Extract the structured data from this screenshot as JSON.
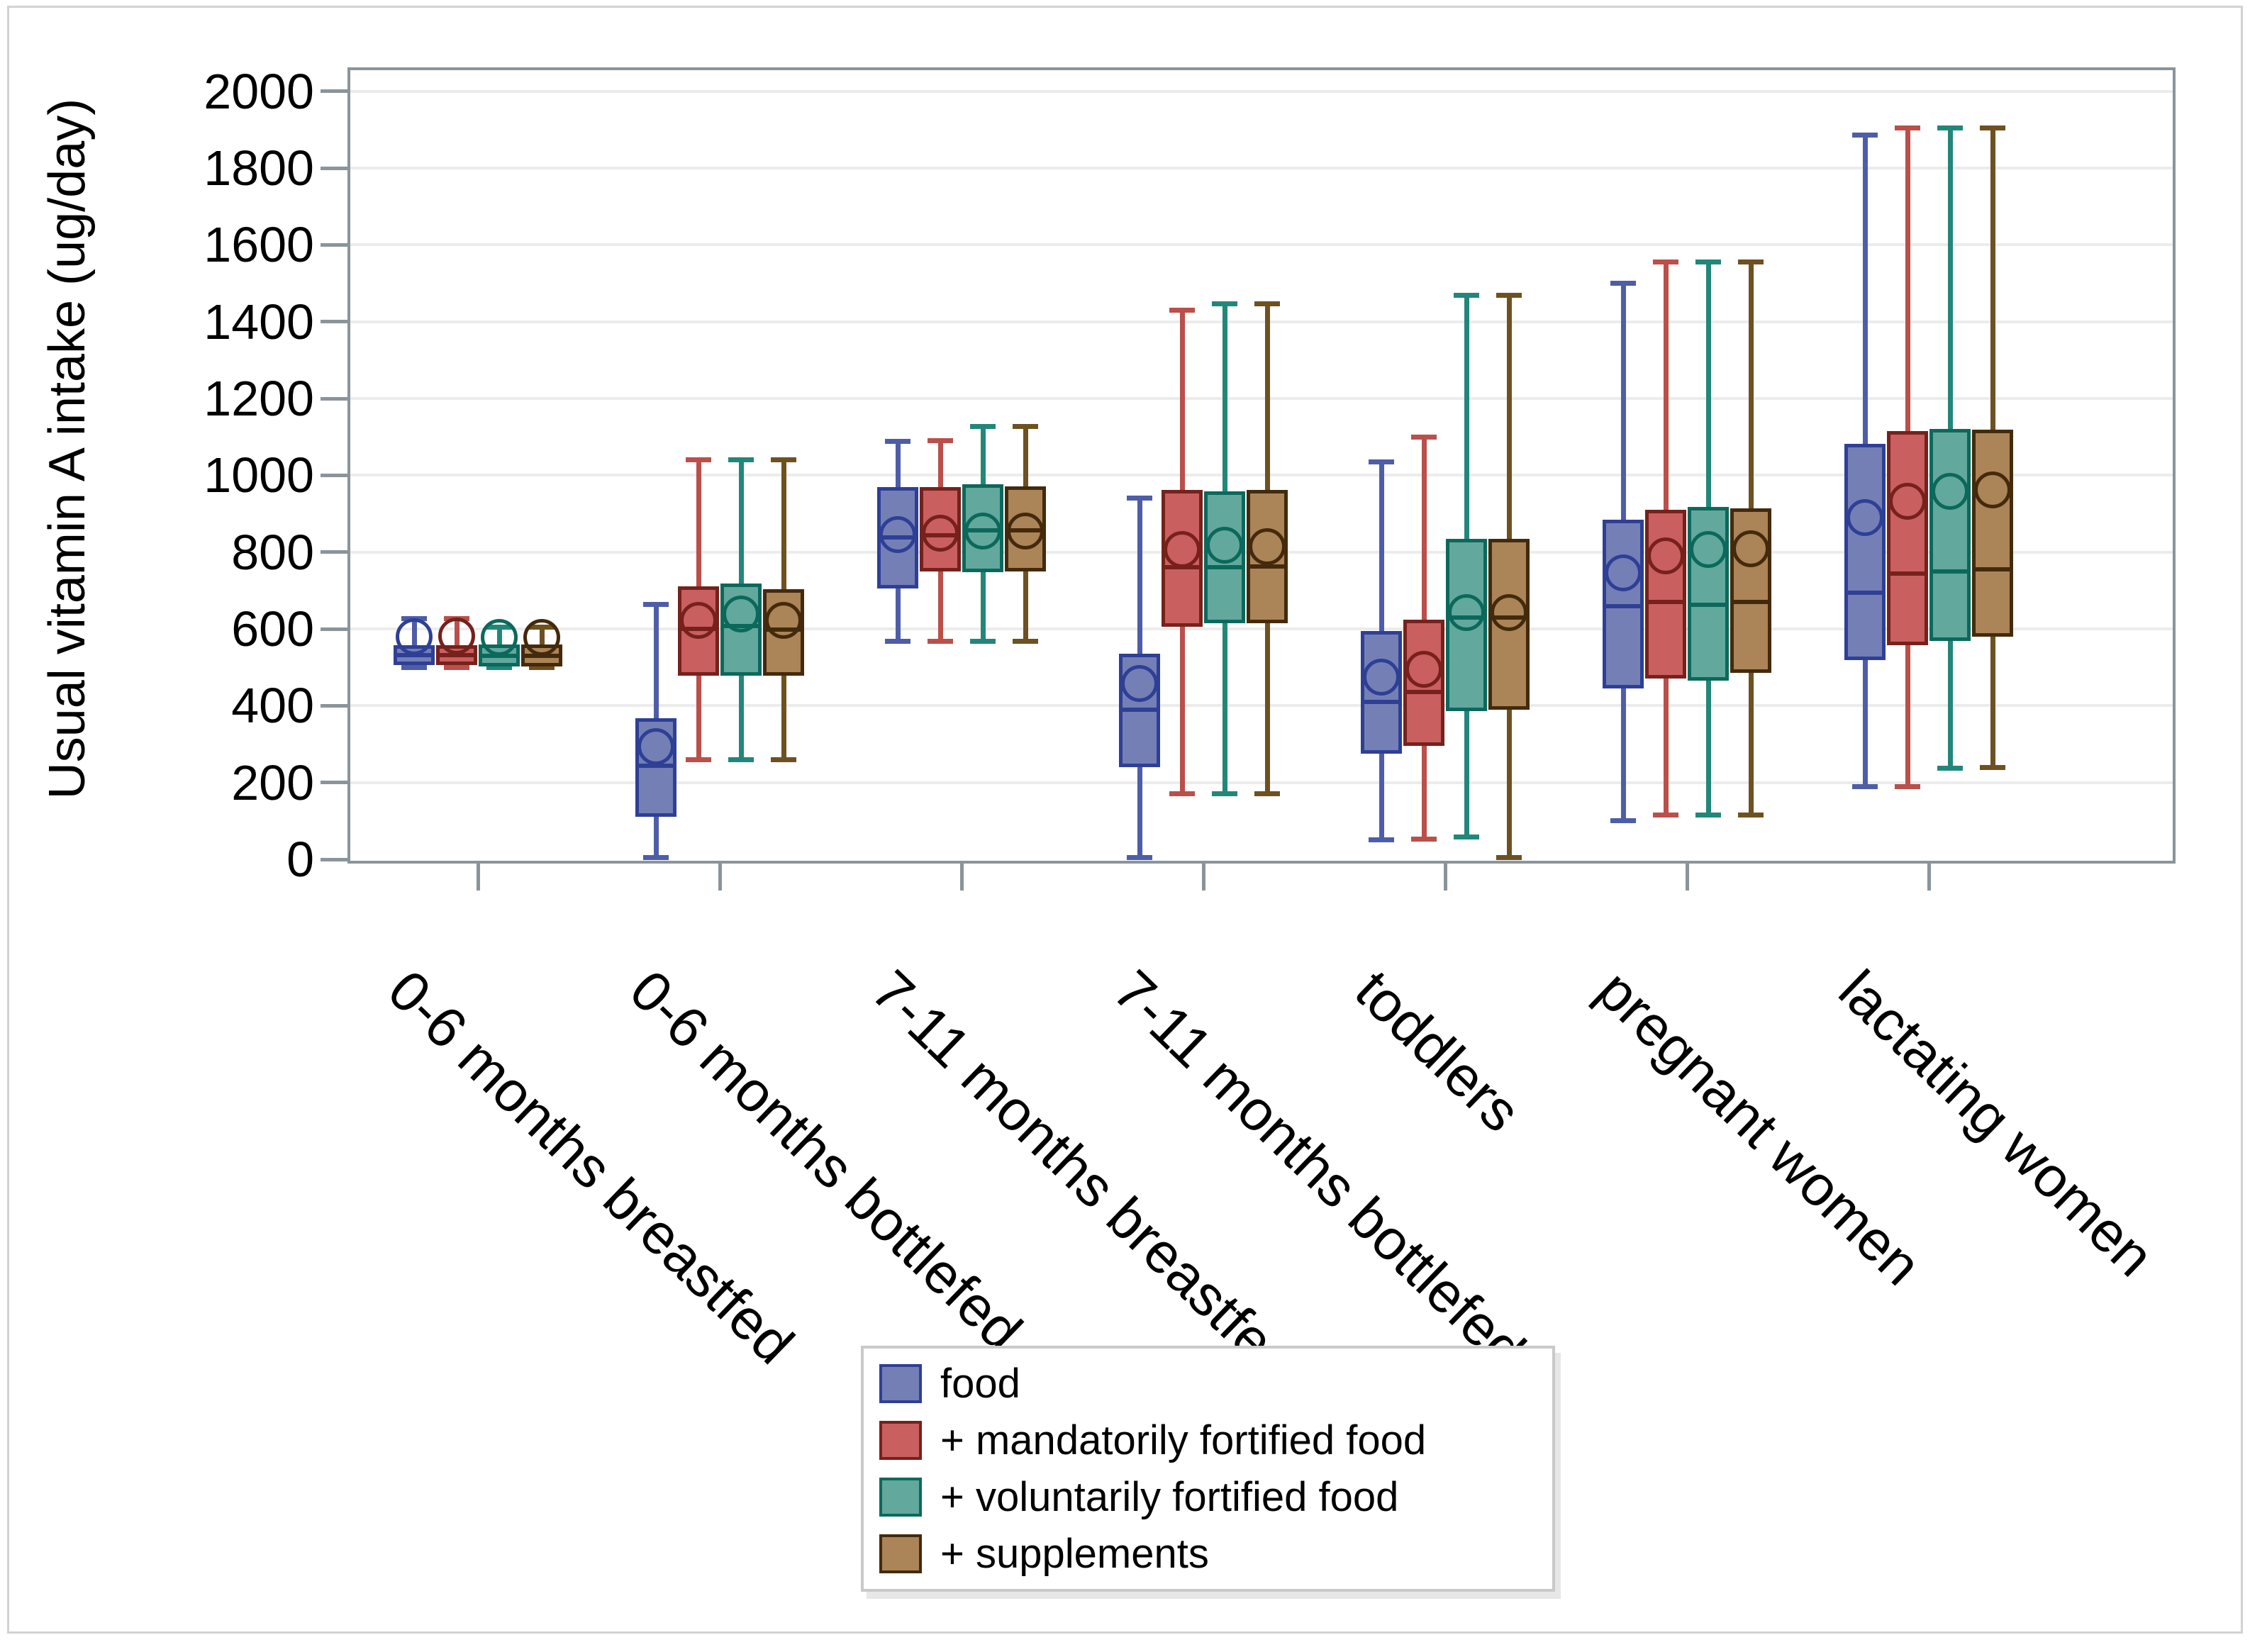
{
  "figure": {
    "background": "#ffffff",
    "border_color": "#d2d2d2"
  },
  "axis": {
    "frame_color": "#8a949b",
    "tick_color": "#8a949b",
    "gridline_color": "#ececec",
    "text_color": "#000000"
  },
  "chart_data": {
    "type": "boxplot",
    "title": "",
    "ylabel": "Usual vitamin A intake (ug/day)",
    "xlabel": "",
    "ylim": [
      0,
      2000
    ],
    "yticks": [
      0,
      200,
      400,
      600,
      800,
      1000,
      1200,
      1400,
      1600,
      1800,
      2000
    ],
    "grid": "horizontal",
    "legend_position": "bottom-center",
    "categories": [
      "0-6 months breastfed",
      "0-6 months bottlefed",
      "7-11 months breastfed",
      "7-11 months bottlefed",
      "toddlers",
      "pregnant women",
      "lactating women"
    ],
    "series": [
      {
        "name": "food",
        "fill": "#7480b5",
        "stroke": "#2e3f96",
        "whisker_color": "#4d5da8",
        "boxes": [
          {
            "min": 500,
            "q1": 505,
            "median": 532,
            "q3": 558,
            "mean": 580,
            "max": 627
          },
          {
            "min": 5,
            "q1": 111,
            "median": 244,
            "q3": 367,
            "mean": 293,
            "max": 663
          },
          {
            "min": 568,
            "q1": 705,
            "median": 838,
            "q3": 969,
            "mean": 846,
            "max": 1088
          },
          {
            "min": 5,
            "q1": 240,
            "median": 390,
            "q3": 535,
            "mean": 458,
            "max": 941
          },
          {
            "min": 50,
            "q1": 275,
            "median": 410,
            "q3": 595,
            "mean": 475,
            "max": 1035
          },
          {
            "min": 100,
            "q1": 445,
            "median": 660,
            "q3": 884,
            "mean": 746,
            "max": 1500
          },
          {
            "min": 190,
            "q1": 519,
            "median": 694,
            "q3": 1082,
            "mean": 890,
            "max": 1885
          }
        ]
      },
      {
        "name": "+ mandatorily fortified food",
        "fill": "#c95f5f",
        "stroke": "#76211c",
        "whisker_color": "#bb4f4a",
        "boxes": [
          {
            "min": 500,
            "q1": 505,
            "median": 532,
            "q3": 558,
            "mean": 582,
            "max": 627
          },
          {
            "min": 260,
            "q1": 478,
            "median": 600,
            "q3": 711,
            "mean": 622,
            "max": 1040
          },
          {
            "min": 568,
            "q1": 750,
            "median": 843,
            "q3": 970,
            "mean": 849,
            "max": 1090
          },
          {
            "min": 170,
            "q1": 606,
            "median": 760,
            "q3": 962,
            "mean": 807,
            "max": 1430
          },
          {
            "min": 52,
            "q1": 295,
            "median": 435,
            "q3": 624,
            "mean": 495,
            "max": 1100
          },
          {
            "min": 115,
            "q1": 470,
            "median": 670,
            "q3": 910,
            "mean": 790,
            "max": 1555
          },
          {
            "min": 190,
            "q1": 558,
            "median": 744,
            "q3": 1115,
            "mean": 933,
            "max": 1905
          }
        ]
      },
      {
        "name": "+ voluntarily fortified food",
        "fill": "#63a89d",
        "stroke": "#0b695c",
        "whisker_color": "#22877a",
        "boxes": [
          {
            "min": 500,
            "q1": 503,
            "median": 530,
            "q3": 560,
            "mean": 578,
            "max": 605
          },
          {
            "min": 260,
            "q1": 478,
            "median": 607,
            "q3": 718,
            "mean": 639,
            "max": 1040
          },
          {
            "min": 568,
            "q1": 748,
            "median": 856,
            "q3": 977,
            "mean": 855,
            "max": 1128
          },
          {
            "min": 170,
            "q1": 615,
            "median": 760,
            "q3": 958,
            "mean": 818,
            "max": 1446
          },
          {
            "min": 58,
            "q1": 385,
            "median": 629,
            "q3": 834,
            "mean": 642,
            "max": 1468
          },
          {
            "min": 115,
            "q1": 465,
            "median": 663,
            "q3": 918,
            "mean": 807,
            "max": 1555
          },
          {
            "min": 238,
            "q1": 569,
            "median": 750,
            "q3": 1121,
            "mean": 958,
            "max": 1905
          }
        ]
      },
      {
        "name": "+ supplements",
        "fill": "#ab8458",
        "stroke": "#442a0c",
        "whisker_color": "#6e5120",
        "boxes": [
          {
            "min": 500,
            "q1": 503,
            "median": 530,
            "q3": 560,
            "mean": 578,
            "max": 605
          },
          {
            "min": 260,
            "q1": 478,
            "median": 598,
            "q3": 703,
            "mean": 622,
            "max": 1040
          },
          {
            "min": 568,
            "q1": 750,
            "median": 856,
            "q3": 971,
            "mean": 855,
            "max": 1128
          },
          {
            "min": 170,
            "q1": 615,
            "median": 762,
            "q3": 962,
            "mean": 815,
            "max": 1446
          },
          {
            "min": 5,
            "q1": 390,
            "median": 629,
            "q3": 834,
            "mean": 642,
            "max": 1468
          },
          {
            "min": 115,
            "q1": 486,
            "median": 670,
            "q3": 914,
            "mean": 809,
            "max": 1555
          },
          {
            "min": 240,
            "q1": 580,
            "median": 755,
            "q3": 1119,
            "mean": 962,
            "max": 1905
          }
        ]
      }
    ]
  }
}
